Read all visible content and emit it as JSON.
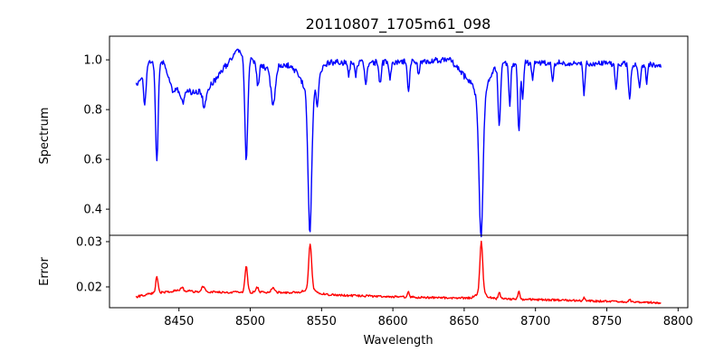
{
  "chart_data": [
    {
      "type": "line",
      "title": "20110807_1705m61_098",
      "xlabel": "",
      "ylabel": "Spectrum",
      "xlim": [
        8401.3,
        8806.8
      ],
      "ylim": [
        0.295,
        1.095
      ],
      "xticks": [
        8450,
        8500,
        8550,
        8600,
        8650,
        8700,
        8750,
        8800
      ],
      "yticks": [
        0.4,
        0.6,
        0.8,
        1.0
      ],
      "ytick_labels": [
        "0.4",
        "0.6",
        "0.8",
        "1.0"
      ],
      "grid": false,
      "color": "#0000ff",
      "x_range": [
        8420,
        8788
      ],
      "continuum": [
        [
          8420,
          0.9
        ],
        [
          8425,
          0.95
        ],
        [
          8430,
          0.99
        ],
        [
          8440,
          0.99
        ],
        [
          8445,
          0.88
        ],
        [
          8460,
          0.87
        ],
        [
          8470,
          0.88
        ],
        [
          8478,
          0.94
        ],
        [
          8486,
          1.0
        ],
        [
          8491,
          1.04
        ],
        [
          8500,
          1.0
        ],
        [
          8510,
          0.97
        ],
        [
          8525,
          0.98
        ],
        [
          8535,
          0.96
        ],
        [
          8550,
          0.99
        ],
        [
          8600,
          0.99
        ],
        [
          8640,
          1.0
        ],
        [
          8650,
          0.94
        ],
        [
          8657,
          0.94
        ],
        [
          8670,
          0.98
        ],
        [
          8700,
          0.99
        ],
        [
          8788,
          0.98
        ]
      ],
      "absorption_lines": [
        [
          8426,
          0.15,
          0.8
        ],
        [
          8434.5,
          0.4,
          0.9
        ],
        [
          8452.5,
          0.05,
          1.0
        ],
        [
          8467.7,
          0.07,
          1.0
        ],
        [
          8497.2,
          0.42,
          1.0
        ],
        [
          8505.4,
          0.09,
          0.8
        ],
        [
          8516,
          0.16,
          1.5
        ],
        [
          8541.8,
          0.56,
          1.3
        ],
        [
          8542,
          0.1,
          5
        ],
        [
          8547,
          0.1,
          0.8
        ],
        [
          8569,
          0.05,
          0.7
        ],
        [
          8574,
          0.05,
          0.7
        ],
        [
          8581,
          0.09,
          0.8
        ],
        [
          8591,
          0.08,
          0.8
        ],
        [
          8598,
          0.07,
          0.7
        ],
        [
          8611,
          0.12,
          0.7
        ],
        [
          8618,
          0.05,
          0.7
        ],
        [
          8661.8,
          0.56,
          1.4
        ],
        [
          8662,
          0.1,
          5
        ],
        [
          8674.6,
          0.25,
          0.8
        ],
        [
          8682,
          0.16,
          0.7
        ],
        [
          8688.4,
          0.27,
          0.8
        ],
        [
          8691,
          0.14,
          0.6
        ],
        [
          8698,
          0.07,
          0.7
        ],
        [
          8712,
          0.07,
          0.7
        ],
        [
          8734,
          0.12,
          0.7
        ],
        [
          8756.5,
          0.09,
          0.7
        ],
        [
          8766,
          0.14,
          0.8
        ],
        [
          8773,
          0.1,
          0.8
        ],
        [
          8778,
          0.07,
          0.7
        ]
      ],
      "noise": 0.015
    },
    {
      "type": "line",
      "title": "",
      "xlabel": "Wavelength",
      "ylabel": "Error",
      "xlim": [
        8401.3,
        8806.8
      ],
      "ylim": [
        0.0154,
        0.0314
      ],
      "xticks": [
        8450,
        8500,
        8550,
        8600,
        8650,
        8700,
        8750,
        8800
      ],
      "xtick_labels": [
        "8450",
        "8500",
        "8550",
        "8600",
        "8650",
        "8700",
        "8750",
        "8800"
      ],
      "yticks": [
        0.02,
        0.03
      ],
      "ytick_labels": [
        "0.02",
        "0.03"
      ],
      "grid": false,
      "color": "#ff0000",
      "x_range": [
        8420,
        8788
      ],
      "baseline": [
        [
          8420,
          0.0178
        ],
        [
          8430,
          0.0185
        ],
        [
          8450,
          0.0192
        ],
        [
          8460,
          0.019
        ],
        [
          8480,
          0.0188
        ],
        [
          8530,
          0.0188
        ],
        [
          8560,
          0.0182
        ],
        [
          8600,
          0.0178
        ],
        [
          8650,
          0.0175
        ],
        [
          8700,
          0.0172
        ],
        [
          8750,
          0.0168
        ],
        [
          8788,
          0.0165
        ]
      ],
      "peaks": [
        [
          8434.5,
          0.0038,
          0.8
        ],
        [
          8452,
          0.0008,
          1
        ],
        [
          8467,
          0.0012,
          1
        ],
        [
          8497.2,
          0.0058,
          0.9
        ],
        [
          8505,
          0.0012,
          0.8
        ],
        [
          8516,
          0.001,
          1.2
        ],
        [
          8542,
          0.01,
          1.0
        ],
        [
          8542,
          0.001,
          4
        ],
        [
          8611,
          0.0012,
          0.6
        ],
        [
          8662,
          0.0115,
          1.0
        ],
        [
          8662,
          0.001,
          4
        ],
        [
          8674.6,
          0.0015,
          0.7
        ],
        [
          8688.4,
          0.0018,
          0.7
        ],
        [
          8734,
          0.0006,
          0.7
        ],
        [
          8766,
          0.0005,
          0.8
        ]
      ],
      "noise": 0.0003
    }
  ]
}
